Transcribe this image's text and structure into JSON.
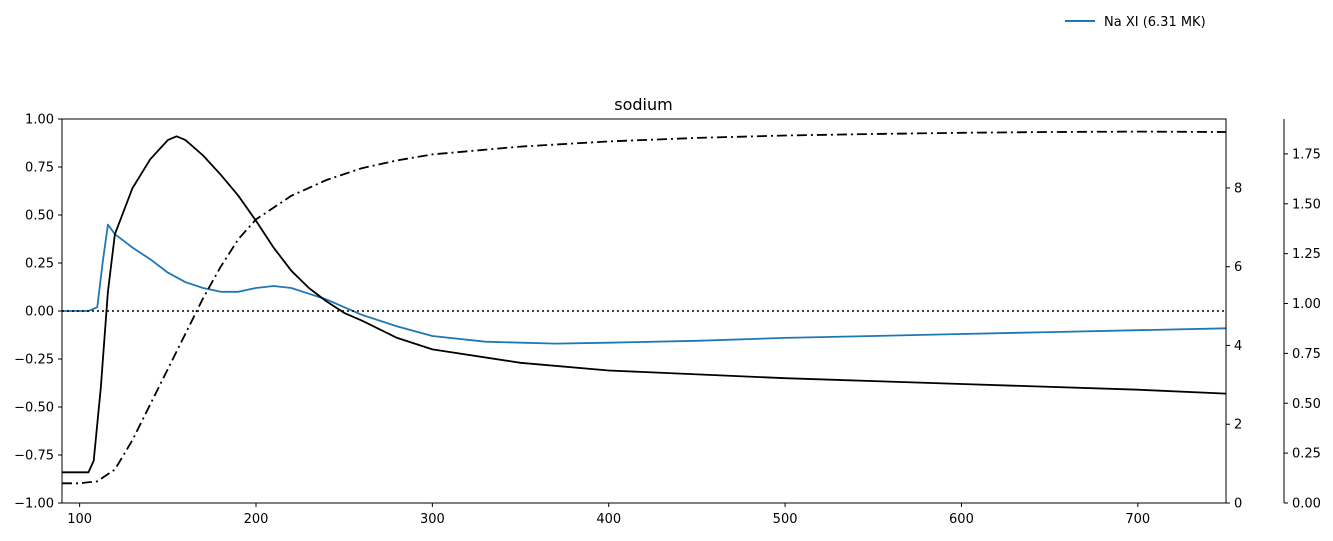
{
  "chart_data": {
    "type": "line",
    "title": "sodium",
    "legend": {
      "placement": "top-right",
      "entries": [
        {
          "label": "Na XI (6.31 MK)",
          "color": "#1f77b4",
          "style": "solid"
        }
      ]
    },
    "x_axis": {
      "range": [
        90,
        750
      ],
      "ticks": [
        100,
        200,
        300,
        400,
        500,
        600,
        700
      ],
      "tick_labels": [
        "100",
        "200",
        "300",
        "400",
        "500",
        "600",
        "700"
      ]
    },
    "y_axis_left": {
      "range": [
        -1.0,
        1.0
      ],
      "ticks": [
        -1.0,
        -0.75,
        -0.5,
        -0.25,
        0.0,
        0.25,
        0.5,
        0.75,
        1.0
      ],
      "tick_labels": [
        "−1.00",
        "−0.75",
        "−0.50",
        "−0.25",
        "0.00",
        "0.25",
        "0.50",
        "0.75",
        "1.00"
      ]
    },
    "y_axis_right": {
      "range": [
        0,
        9.75
      ],
      "ticks": [
        0,
        2,
        4,
        6,
        8
      ],
      "tick_labels": [
        "0",
        "2",
        "4",
        "6",
        "8"
      ]
    },
    "y_axis_far_right": {
      "range": [
        0,
        1.925
      ],
      "ticks": [
        0.0,
        0.25,
        0.5,
        0.75,
        1.0,
        1.25,
        1.5,
        1.75
      ],
      "tick_labels": [
        "0.00",
        "0.25",
        "0.50",
        "0.75",
        "1.00",
        "1.25",
        "1.50",
        "1.75"
      ]
    },
    "series": [
      {
        "name": "Na XI (6.31 MK)",
        "axis": "left",
        "color": "#1f77b4",
        "style": "solid",
        "x": [
          90,
          105,
          110,
          113,
          116,
          120,
          130,
          140,
          150,
          160,
          170,
          180,
          190,
          200,
          210,
          220,
          230,
          240,
          250,
          260,
          280,
          300,
          330,
          370,
          400,
          450,
          500,
          550,
          600,
          650,
          700,
          750
        ],
        "y": [
          0.0,
          0.0,
          0.02,
          0.25,
          0.45,
          0.4,
          0.33,
          0.27,
          0.2,
          0.15,
          0.12,
          0.1,
          0.1,
          0.12,
          0.13,
          0.12,
          0.09,
          0.06,
          0.02,
          -0.02,
          -0.08,
          -0.13,
          -0.16,
          -0.17,
          -0.165,
          -0.155,
          -0.14,
          -0.13,
          -0.12,
          -0.11,
          -0.1,
          -0.09
        ]
      },
      {
        "name": "",
        "axis": "left",
        "color": "#000000",
        "style": "solid",
        "x": [
          90,
          105,
          108,
          112,
          116,
          120,
          130,
          140,
          150,
          155,
          160,
          170,
          180,
          190,
          200,
          210,
          220,
          230,
          240,
          250,
          260,
          280,
          300,
          350,
          400,
          500,
          600,
          700,
          750
        ],
        "y": [
          -0.84,
          -0.84,
          -0.78,
          -0.4,
          0.1,
          0.4,
          0.64,
          0.79,
          0.89,
          0.91,
          0.89,
          0.81,
          0.71,
          0.6,
          0.47,
          0.33,
          0.21,
          0.12,
          0.05,
          -0.01,
          -0.05,
          -0.14,
          -0.2,
          -0.27,
          -0.31,
          -0.35,
          -0.38,
          -0.41,
          -0.43
        ]
      },
      {
        "name": "",
        "axis": "right",
        "color": "#000000",
        "style": "dashdot",
        "x": [
          90,
          100,
          110,
          120,
          130,
          140,
          150,
          160,
          170,
          180,
          190,
          200,
          210,
          220,
          240,
          260,
          280,
          300,
          350,
          400,
          450,
          500,
          550,
          600,
          650,
          700,
          750
        ],
        "y": [
          0.5,
          0.5,
          0.55,
          0.85,
          1.6,
          2.5,
          3.4,
          4.3,
          5.2,
          6.0,
          6.7,
          7.2,
          7.5,
          7.8,
          8.2,
          8.5,
          8.7,
          8.85,
          9.05,
          9.18,
          9.27,
          9.33,
          9.37,
          9.4,
          9.42,
          9.43,
          9.42
        ]
      },
      {
        "name": "",
        "axis": "left",
        "color": "#000000",
        "style": "dotted",
        "x": [
          90,
          750
        ],
        "y": [
          0.0,
          0.0
        ]
      }
    ]
  }
}
